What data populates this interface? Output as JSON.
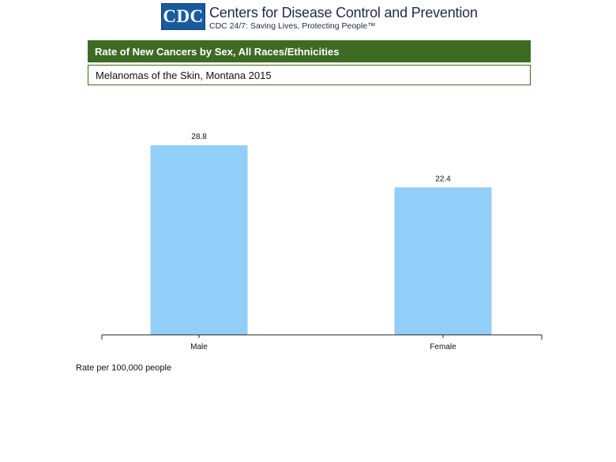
{
  "header": {
    "logo_text": "CDC",
    "org_name": "Centers for Disease Control and Prevention",
    "tagline": "CDC 24/7: Saving Lives, Protecting People™"
  },
  "chart_data": {
    "type": "bar",
    "title": "Rate of New Cancers by Sex, All Races/Ethnicities",
    "subtitle": "Melanomas of the Skin, Montana 2015",
    "categories": [
      "Male",
      "Female"
    ],
    "values": [
      28.8,
      22.4
    ],
    "data_labels": [
      "28.8",
      "22.4"
    ],
    "xlabel": "",
    "ylabel": "",
    "ylim": [
      0,
      32
    ],
    "grid": false,
    "legend": "none",
    "bar_color": "#92cff8",
    "footnote": "Rate per 100,000 people"
  }
}
